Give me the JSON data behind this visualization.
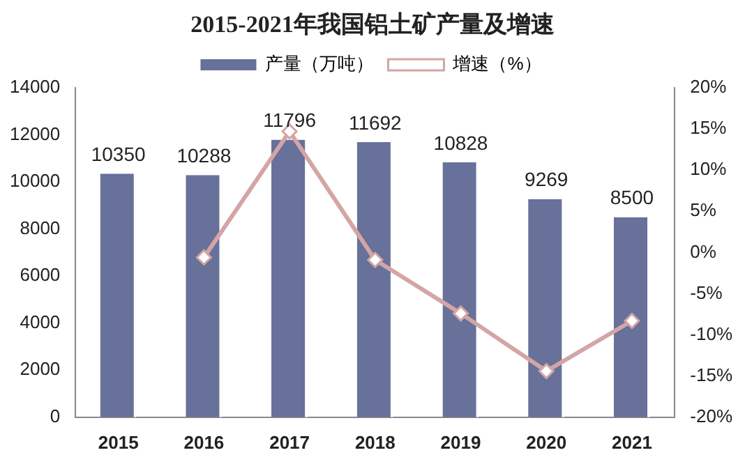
{
  "chart_data": {
    "type": "bar",
    "title": "2015-2021年我国铝土矿产量及增速",
    "categories": [
      "2015",
      "2016",
      "2017",
      "2018",
      "2019",
      "2020",
      "2021"
    ],
    "series": [
      {
        "name": "产量（万吨）",
        "color": "#67719a",
        "values": [
          10350,
          10288,
          11796,
          11692,
          10828,
          9269,
          8500
        ]
      },
      {
        "name": "增速（%）",
        "type": "line",
        "axis": "y2",
        "color": "#d4a5a5",
        "marker": "diamond",
        "values": [
          null,
          -0.6,
          14.7,
          -0.9,
          -7.4,
          -14.4,
          -8.3
        ]
      }
    ],
    "ylim": [
      0,
      14000
    ],
    "yticks": [
      0,
      2000,
      4000,
      6000,
      8000,
      10000,
      12000,
      14000
    ],
    "y2lim": [
      -20,
      20
    ],
    "y2ticks": [
      {
        "value": -20,
        "label": "-20%"
      },
      {
        "value": -15,
        "label": "-15%"
      },
      {
        "value": -10,
        "label": "-10%"
      },
      {
        "value": -5,
        "label": "-5%"
      },
      {
        "value": 0,
        "label": "0%"
      },
      {
        "value": 5,
        "label": "5%"
      },
      {
        "value": 10,
        "label": "10%"
      },
      {
        "value": 15,
        "label": "15%"
      },
      {
        "value": 20,
        "label": "20%"
      }
    ],
    "value_labels": [
      "10350",
      "10288",
      "11796",
      "11692",
      "10828",
      "9269",
      "8500"
    ],
    "legend": "top",
    "grid": false
  }
}
